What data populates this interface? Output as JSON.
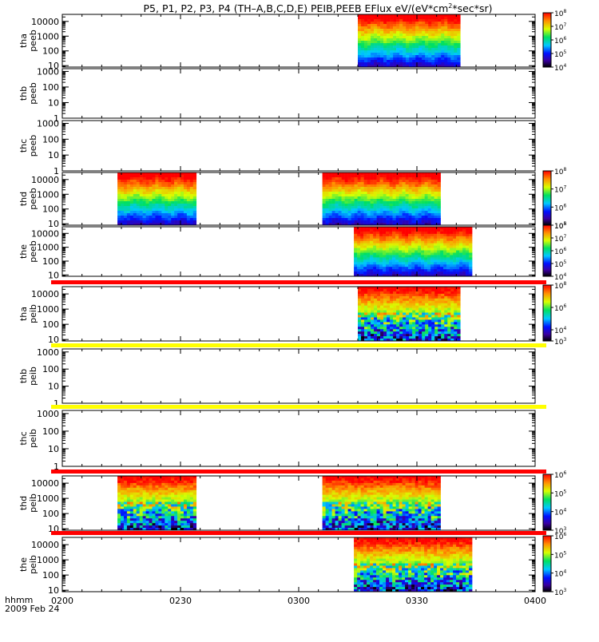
{
  "title": "P5, P1, P2, P3, P4 (TH–A,B,C,D,E) PEIB,PEEB EFlux eV/(eV*cm",
  "title_sup": "2",
  "title_tail": "*sec*sr)",
  "time_axis": {
    "label_line1": "hhmm",
    "label_line2": "2009 Feb 24",
    "ticks": [
      "0200",
      "0230",
      "0300",
      "0330",
      "0400"
    ],
    "range_minutes": [
      0,
      120
    ]
  },
  "chart_data": [
    {
      "type": "heatmap",
      "probe": "tha",
      "product": "peeb",
      "y_label": [
        "tha",
        "peeb"
      ],
      "y_scale": "log",
      "ylim": [
        8,
        30000
      ],
      "y_ticks": [
        "10",
        "100",
        "1000",
        "10000"
      ],
      "segments": [
        [
          75,
          101
        ]
      ],
      "colorbar": {
        "labels": [
          {
            "base": "10",
            "exp": "8"
          },
          {
            "base": "10",
            "exp": "7"
          },
          {
            "base": "10",
            "exp": "6"
          },
          {
            "base": "10",
            "exp": "5"
          },
          {
            "base": "10",
            "exp": "4"
          }
        ],
        "min_exp": 4,
        "max_exp": 8
      },
      "status_bar": null
    },
    {
      "type": "heatmap",
      "probe": "thb",
      "product": "peeb",
      "y_label": [
        "thb",
        "peeb"
      ],
      "y_scale": "log",
      "ylim": [
        1,
        1500
      ],
      "y_ticks": [
        "1000",
        "100",
        "10",
        "1"
      ],
      "segments": [],
      "colorbar": null,
      "status_bar": null
    },
    {
      "type": "heatmap",
      "probe": "thc",
      "product": "peeb",
      "y_label": [
        "thc",
        "peeb"
      ],
      "y_scale": "log",
      "ylim": [
        1,
        1500
      ],
      "y_ticks": [
        "1000",
        "100",
        "10",
        "1"
      ],
      "segments": [],
      "colorbar": null,
      "status_bar": null
    },
    {
      "type": "heatmap",
      "probe": "thd",
      "product": "peeb",
      "y_label": [
        "thd",
        "peeb"
      ],
      "y_scale": "log",
      "ylim": [
        8,
        30000
      ],
      "y_ticks": [
        "10",
        "100",
        "1000",
        "10000"
      ],
      "segments": [
        [
          14,
          34
        ],
        [
          66,
          96
        ]
      ],
      "colorbar": {
        "labels": [
          {
            "base": "10",
            "exp": "8"
          },
          {
            "base": "10",
            "exp": "7"
          },
          {
            "base": "10",
            "exp": "6"
          },
          {
            "base": "10",
            "exp": "5"
          }
        ],
        "min_exp": 5,
        "max_exp": 8
      },
      "status_bar": null
    },
    {
      "type": "heatmap",
      "probe": "the",
      "product": "peeb",
      "y_label": [
        "the",
        "peeb"
      ],
      "y_scale": "log",
      "ylim": [
        8,
        30000
      ],
      "y_ticks": [
        "10",
        "100",
        "1000",
        "10000"
      ],
      "segments": [
        [
          74,
          104
        ]
      ],
      "colorbar": {
        "labels": [
          {
            "base": "10",
            "exp": "8"
          },
          {
            "base": "10",
            "exp": "7"
          },
          {
            "base": "10",
            "exp": "6"
          },
          {
            "base": "10",
            "exp": "5"
          },
          {
            "base": "10",
            "exp": "4"
          }
        ],
        "min_exp": 4,
        "max_exp": 8
      },
      "status_bar": null
    },
    {
      "type": "heatmap",
      "probe": "tha",
      "product": "peib",
      "y_label": [
        "tha",
        "peib"
      ],
      "y_scale": "log",
      "ylim": [
        8,
        30000
      ],
      "y_ticks": [
        "10",
        "100",
        "1000",
        "10000"
      ],
      "segments": [
        [
          75,
          101
        ]
      ],
      "colorbar": {
        "labels": [
          {
            "base": "10",
            "exp": "8"
          },
          {
            "base": "10",
            "exp": "6"
          },
          {
            "base": "10",
            "exp": "4"
          },
          {
            "base": "10",
            "exp": "3"
          }
        ],
        "min_exp": 3,
        "max_exp": 8
      },
      "status_bar": "#ff0000"
    },
    {
      "type": "heatmap",
      "probe": "thb",
      "product": "peib",
      "y_label": [
        "thb",
        "peib"
      ],
      "y_scale": "log",
      "ylim": [
        1,
        1500
      ],
      "y_ticks": [
        "1000",
        "100",
        "10",
        "1"
      ],
      "segments": [],
      "colorbar": null,
      "status_bar": "#ffff00"
    },
    {
      "type": "heatmap",
      "probe": "thc",
      "product": "peib",
      "y_label": [
        "thc",
        "peib"
      ],
      "y_scale": "log",
      "ylim": [
        1,
        1500
      ],
      "y_ticks": [
        "1000",
        "100",
        "10",
        "1"
      ],
      "segments": [],
      "colorbar": null,
      "status_bar": "#ffff00"
    },
    {
      "type": "heatmap",
      "probe": "thd",
      "product": "peib",
      "y_label": [
        "thd",
        "peib"
      ],
      "y_scale": "log",
      "ylim": [
        8,
        30000
      ],
      "y_ticks": [
        "10",
        "100",
        "1000",
        "10000"
      ],
      "segments": [
        [
          14,
          34
        ],
        [
          66,
          96
        ]
      ],
      "colorbar": {
        "labels": [
          {
            "base": "10",
            "exp": "6"
          },
          {
            "base": "10",
            "exp": "5"
          },
          {
            "base": "10",
            "exp": "4"
          },
          {
            "base": "10",
            "exp": "3"
          }
        ],
        "min_exp": 3,
        "max_exp": 6
      },
      "status_bar": "#ff0000"
    },
    {
      "type": "heatmap",
      "probe": "the",
      "product": "peib",
      "y_label": [
        "the",
        "peib"
      ],
      "y_scale": "log",
      "ylim": [
        8,
        30000
      ],
      "y_ticks": [
        "10",
        "100",
        "1000",
        "10000"
      ],
      "segments": [
        [
          74,
          104
        ]
      ],
      "colorbar": {
        "labels": [
          {
            "base": "10",
            "exp": "6"
          },
          {
            "base": "10",
            "exp": "5"
          },
          {
            "base": "10",
            "exp": "4"
          },
          {
            "base": "10",
            "exp": "3"
          }
        ],
        "min_exp": 3,
        "max_exp": 6
      },
      "status_bar": "#ff0000"
    }
  ]
}
